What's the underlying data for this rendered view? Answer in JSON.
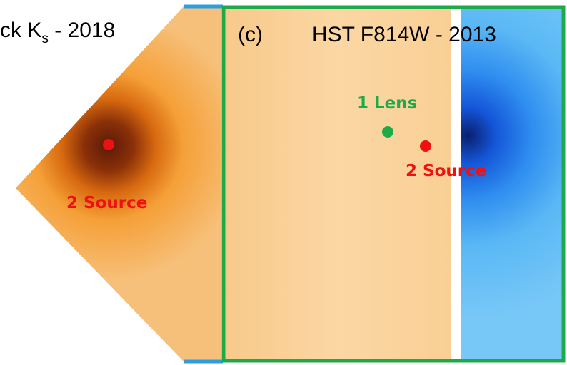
{
  "panels": [
    {
      "title": {
        "prefix": "ck K",
        "subscript": "s",
        "suffix": " - 2018"
      },
      "labels": [
        "2 Source"
      ]
    },
    {
      "tag": "(c)",
      "title": "HST F814W - 2013",
      "labels": [
        "1 Lens",
        "2 Source"
      ]
    }
  ]
}
